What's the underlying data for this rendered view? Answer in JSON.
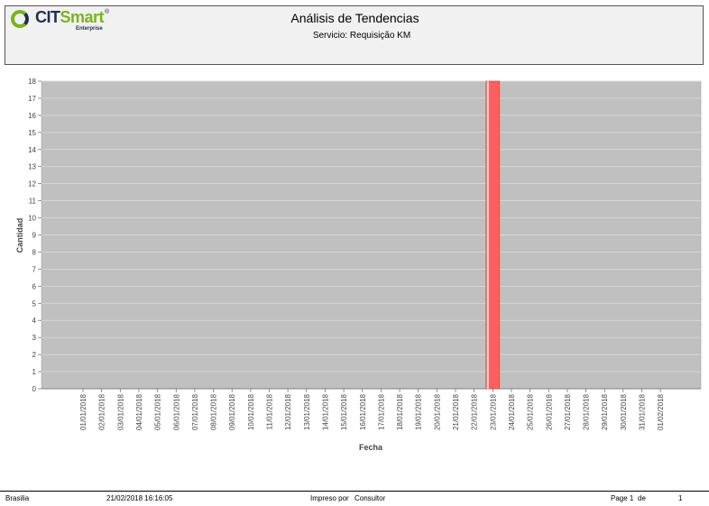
{
  "header": {
    "logo_main": "CIT",
    "logo_accent": "Smart",
    "logo_reg": "®",
    "logo_sub": "Enterprise",
    "title": "Análisis de Tendencias",
    "subtitle": "Servicio: Requisição KM"
  },
  "chart_data": {
    "type": "bar",
    "title": "",
    "xlabel": "Fecha",
    "ylabel": "Cantidad",
    "ylim": [
      0,
      18
    ],
    "yticks": [
      0,
      1,
      2,
      3,
      4,
      5,
      6,
      7,
      8,
      9,
      10,
      11,
      12,
      13,
      14,
      15,
      16,
      17,
      18
    ],
    "grid": true,
    "categories": [
      "01/01/2018",
      "02/01/2018",
      "03/01/2018",
      "04/01/2018",
      "05/01/2018",
      "06/01/2018",
      "07/01/2018",
      "08/01/2018",
      "09/01/2018",
      "10/01/2018",
      "11/01/2018",
      "12/01/2018",
      "13/01/2018",
      "14/01/2018",
      "15/01/2018",
      "16/01/2018",
      "17/01/2018",
      "18/01/2018",
      "19/01/2018",
      "20/01/2018",
      "21/01/2018",
      "22/01/2018",
      "23/01/2018",
      "24/01/2018",
      "25/01/2018",
      "26/01/2018",
      "27/01/2018",
      "28/01/2018",
      "29/01/2018",
      "30/01/2018",
      "31/01/2018",
      "01/02/2018"
    ],
    "series": [
      {
        "name": "Cantidad",
        "color": "#ff5f5f",
        "values": [
          0,
          0,
          0,
          0,
          0,
          0,
          0,
          0,
          0,
          0,
          0,
          0,
          0,
          0,
          0,
          0,
          0,
          0,
          0,
          0,
          0,
          0,
          18,
          0,
          0,
          0,
          0,
          0,
          0,
          0,
          0,
          0
        ]
      }
    ],
    "plot_background": "#c0c0c0"
  },
  "footer": {
    "location": "Brasilia",
    "datetime": "21/02/2018 16:16:05",
    "printed_by_label": "Impreso por",
    "printed_by_user": "Consultor",
    "page_label": "Page 1",
    "page_of": "de",
    "page_total": "1"
  }
}
